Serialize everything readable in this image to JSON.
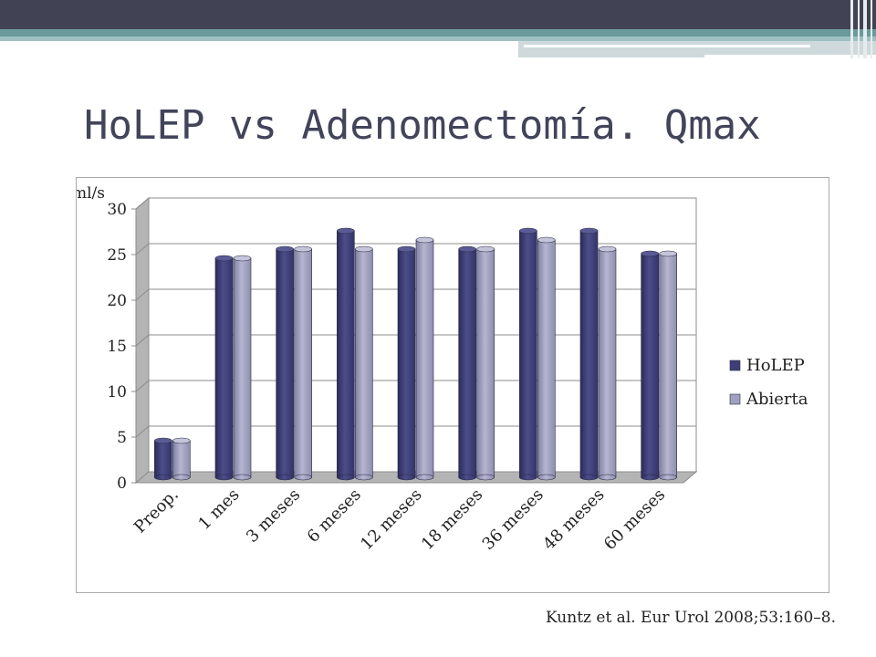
{
  "slide": {
    "title": "HoLEP vs Adenomectomía. Qmax",
    "citation": "Kuntz et al. Eur Urol 2008;53:160–8."
  },
  "colors": {
    "header": "#414354",
    "accent": "#6a9a9c",
    "title": "#42445a",
    "holep": "#3f3f78",
    "abierta": "#a0a0c0"
  },
  "chart_data": {
    "type": "bar",
    "title": "",
    "ylabel": "ml/s",
    "xlabel": "",
    "ylim": [
      0,
      30
    ],
    "yticks": [
      0,
      5,
      10,
      15,
      20,
      25,
      30
    ],
    "grid": true,
    "legend_position": "right",
    "categories": [
      "Preop.",
      "1 mes",
      "3 meses",
      "6 meses",
      "12 meses",
      "18 meses",
      "36 meses",
      "48 meses",
      "60 meses"
    ],
    "series": [
      {
        "name": "HoLEP",
        "values": [
          4,
          24,
          25,
          27,
          25,
          25,
          27,
          27,
          24.5
        ]
      },
      {
        "name": "Abierta",
        "values": [
          4,
          24,
          25,
          25,
          26,
          25,
          26,
          25,
          24.5
        ]
      }
    ]
  }
}
